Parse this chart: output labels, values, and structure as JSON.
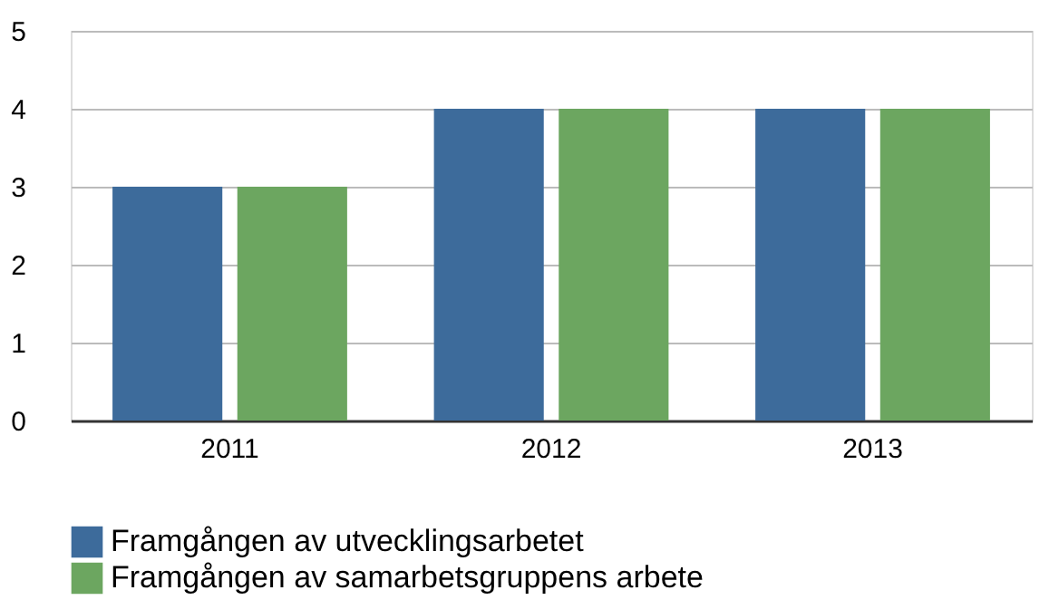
{
  "chart_data": {
    "type": "bar",
    "categories": [
      "2011",
      "2012",
      "2013"
    ],
    "series": [
      {
        "name": "Framgången av utvecklingsarbetet",
        "color": "#3d6b9b",
        "values": [
          3,
          4,
          4
        ]
      },
      {
        "name": "Framgången av samarbetsgruppens arbete",
        "color": "#6ca660",
        "values": [
          3,
          4,
          4
        ]
      }
    ],
    "ylim": [
      0,
      5
    ],
    "yticks": [
      0,
      1,
      2,
      3,
      4,
      5
    ],
    "grid": "y",
    "legend": "bottom left"
  }
}
